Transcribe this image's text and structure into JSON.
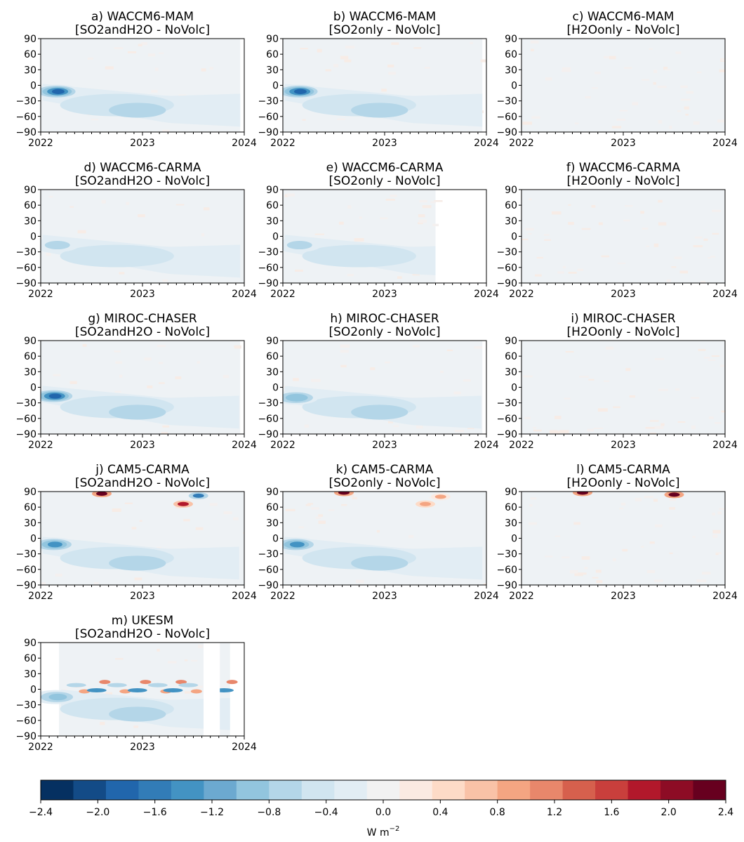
{
  "figure": {
    "colorbar": {
      "ticks": [
        "−2.4",
        "−2.0",
        "−1.6",
        "−1.2",
        "−0.8",
        "−0.4",
        "0.0",
        "0.4",
        "0.8",
        "1.2",
        "1.6",
        "2.0",
        "2.4"
      ],
      "min": -2.4,
      "max": 2.4,
      "step": 0.2,
      "unit_base": "W m",
      "unit_exp": "−2",
      "colors": [
        "#053061",
        "#134b87",
        "#2166ac",
        "#327cb7",
        "#4393c3",
        "#6ca9d0",
        "#92c5de",
        "#b4d6e8",
        "#d1e5f0",
        "#e2edf4",
        "#f2f2f2",
        "#fbeae2",
        "#fddbc7",
        "#f9c2a7",
        "#f4a582",
        "#e8876b",
        "#d6604d",
        "#c93f3c",
        "#b2182b",
        "#8d0c25",
        "#67001f"
      ]
    }
  },
  "chart_data": [
    {
      "type": "heatmap",
      "title": "a) WACCM6-MAM",
      "subtitle": "[SO2andH2O - NoVolc]",
      "xticks": [
        "2022",
        "2023",
        "2024"
      ],
      "yticks": [
        "90",
        "60",
        "30",
        "0",
        "−30",
        "−60",
        "−90"
      ],
      "xlim": [
        2022,
        2024
      ],
      "ylim": [
        -90,
        90
      ],
      "data_end": 1.96,
      "peak": {
        "x": 2022.15,
        "y": -12,
        "value": -1.9
      },
      "plume": "long"
    },
    {
      "type": "heatmap",
      "title": "b) WACCM6-MAM",
      "subtitle": "[SO2only - NoVolc]",
      "xticks": [
        "2022",
        "2023",
        "2024"
      ],
      "yticks": [
        "90",
        "60",
        "30",
        "0",
        "−30",
        "−60",
        "−90"
      ],
      "xlim": [
        2022,
        2024
      ],
      "ylim": [
        -90,
        90
      ],
      "data_end": 1.96,
      "peak": {
        "x": 2022.15,
        "y": -12,
        "value": -1.9
      },
      "plume": "long"
    },
    {
      "type": "heatmap",
      "title": "c) WACCM6-MAM",
      "subtitle": "[H2Oonly - NoVolc]",
      "xticks": [
        "2022",
        "2023",
        "2024"
      ],
      "yticks": [
        "90",
        "60",
        "30",
        "0",
        "−30",
        "−60",
        "−90"
      ],
      "xlim": [
        2022,
        2024
      ],
      "ylim": [
        -90,
        90
      ],
      "data_end": 2.0,
      "peak": null,
      "plume": "none"
    },
    {
      "type": "heatmap",
      "title": "d) WACCM6-CARMA",
      "subtitle": "[SO2andH2O - NoVolc]",
      "xticks": [
        "2022",
        "2023",
        "2024"
      ],
      "yticks": [
        "90",
        "60",
        "30",
        "0",
        "−30",
        "−60",
        "−90"
      ],
      "xlim": [
        2022,
        2024
      ],
      "ylim": [
        -90,
        90
      ],
      "data_end": 2.0,
      "peak": {
        "x": 2022.15,
        "y": -17,
        "value": -0.7
      },
      "plume": "weak"
    },
    {
      "type": "heatmap",
      "title": "e) WACCM6-CARMA",
      "subtitle": "[SO2only - NoVolc]",
      "xticks": [
        "2022",
        "2023",
        "2024"
      ],
      "yticks": [
        "90",
        "60",
        "30",
        "0",
        "−30",
        "−60",
        "−90"
      ],
      "xlim": [
        2022,
        2024
      ],
      "ylim": [
        -90,
        90
      ],
      "data_end": 1.5,
      "peak": {
        "x": 2022.15,
        "y": -17,
        "value": -0.7
      },
      "plume": "weak"
    },
    {
      "type": "heatmap",
      "title": "f) WACCM6-CARMA",
      "subtitle": "[H2Oonly - NoVolc]",
      "xticks": [
        "2022",
        "2023",
        "2024"
      ],
      "yticks": [
        "90",
        "60",
        "30",
        "0",
        "−30",
        "−60",
        "−90"
      ],
      "xlim": [
        2022,
        2024
      ],
      "ylim": [
        -90,
        90
      ],
      "data_end": 2.0,
      "peak": null,
      "plume": "none"
    },
    {
      "type": "heatmap",
      "title": "g) MIROC-CHASER",
      "subtitle": "[SO2andH2O - NoVolc]",
      "xticks": [
        "2022",
        "2023",
        "2024"
      ],
      "yticks": [
        "90",
        "60",
        "30",
        "0",
        "−30",
        "−60",
        "−90"
      ],
      "xlim": [
        2022,
        2024
      ],
      "ylim": [
        -90,
        90
      ],
      "data_end": 1.96,
      "peak": {
        "x": 2022.12,
        "y": -17,
        "value": -1.9
      },
      "plume": "medium"
    },
    {
      "type": "heatmap",
      "title": "h) MIROC-CHASER",
      "subtitle": "[SO2only - NoVolc]",
      "xticks": [
        "2022",
        "2023",
        "2024"
      ],
      "yticks": [
        "90",
        "60",
        "30",
        "0",
        "−30",
        "−60",
        "−90"
      ],
      "xlim": [
        2022,
        2024
      ],
      "ylim": [
        -90,
        90
      ],
      "data_end": 1.96,
      "peak": {
        "x": 2022.12,
        "y": -20,
        "value": -1.2
      },
      "plume": "medium"
    },
    {
      "type": "heatmap",
      "title": "i) MIROC-CHASER",
      "subtitle": "[H2Oonly - NoVolc]",
      "xticks": [
        "2022",
        "2023",
        "2024"
      ],
      "yticks": [
        "90",
        "60",
        "30",
        "0",
        "−30",
        "−60",
        "−90"
      ],
      "xlim": [
        2022,
        2024
      ],
      "ylim": [
        -90,
        90
      ],
      "data_end": 2.0,
      "peak": null,
      "plume": "none"
    },
    {
      "type": "heatmap",
      "title": "j) CAM5-CARMA",
      "subtitle": "[SO2andH2O - NoVolc]",
      "xticks": [
        "2022",
        "2023",
        "2024"
      ],
      "yticks": [
        "90",
        "60",
        "30",
        "0",
        "−30",
        "−60",
        "−90"
      ],
      "xlim": [
        2022,
        2024
      ],
      "ylim": [
        -90,
        90
      ],
      "data_end": 2.0,
      "peak": {
        "x": 2022.12,
        "y": -12,
        "value": -1.4
      },
      "plume": "medium",
      "polar_spots": [
        {
          "x": 2022.6,
          "y": 86,
          "value": 2.4
        },
        {
          "x": 2023.4,
          "y": 66,
          "value": 1.8
        },
        {
          "x": 2023.55,
          "y": 82,
          "value": -1.6
        }
      ]
    },
    {
      "type": "heatmap",
      "title": "k) CAM5-CARMA",
      "subtitle": "[SO2only - NoVolc]",
      "xticks": [
        "2022",
        "2023",
        "2024"
      ],
      "yticks": [
        "90",
        "60",
        "30",
        "0",
        "−30",
        "−60",
        "−90"
      ],
      "xlim": [
        2022,
        2024
      ],
      "ylim": [
        -90,
        90
      ],
      "data_end": 2.0,
      "peak": {
        "x": 2022.12,
        "y": -12,
        "value": -1.4
      },
      "plume": "long",
      "polar_spots": [
        {
          "x": 2022.6,
          "y": 88,
          "value": 2.2
        },
        {
          "x": 2023.4,
          "y": 66,
          "value": 1.0
        },
        {
          "x": 2023.55,
          "y": 80,
          "value": 0.8
        }
      ]
    },
    {
      "type": "heatmap",
      "title": "l) CAM5-CARMA",
      "subtitle": "[H2Oonly - NoVolc]",
      "xticks": [
        "2022",
        "2023",
        "2024"
      ],
      "yticks": [
        "90",
        "60",
        "30",
        "0",
        "−30",
        "−60",
        "−90"
      ],
      "xlim": [
        2022,
        2024
      ],
      "ylim": [
        -90,
        90
      ],
      "data_end": 2.0,
      "peak": null,
      "plume": "none",
      "polar_spots": [
        {
          "x": 2022.6,
          "y": 88,
          "value": 2.2
        },
        {
          "x": 2023.5,
          "y": 84,
          "value": 2.4
        }
      ]
    },
    {
      "type": "heatmap",
      "title": "m) UKESM",
      "subtitle": "[SO2andH2O - NoVolc]",
      "xticks": [
        "2022",
        "2023",
        "2024"
      ],
      "yticks": [
        "90",
        "60",
        "30",
        "0",
        "−30",
        "−60",
        "−90"
      ],
      "xlim": [
        2022,
        2024
      ],
      "ylim": [
        -90,
        90
      ],
      "data_start": 0.18,
      "data_end": 1.86,
      "gaps": [
        [
          1.6,
          1.76
        ]
      ],
      "peak": {
        "x": 2022.15,
        "y": -15,
        "value": -0.9
      },
      "plume": "ukesm"
    }
  ]
}
